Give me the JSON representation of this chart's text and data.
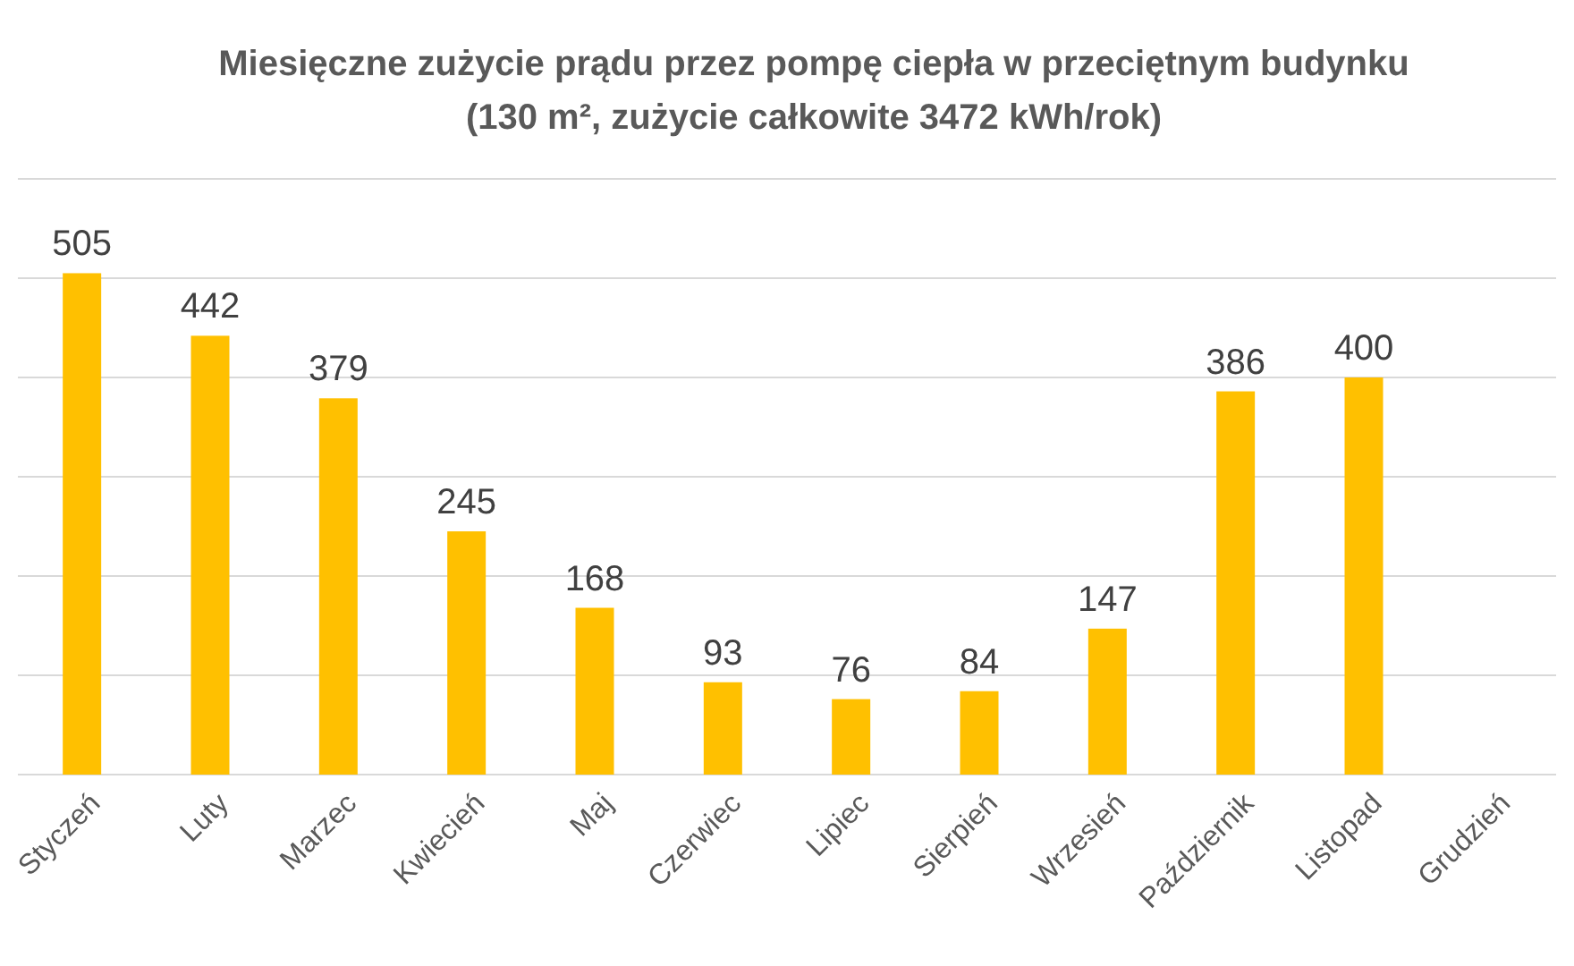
{
  "chart_data": {
    "type": "bar",
    "title": "Miesięczne zużycie prądu przez pompę ciepła w przeciętnym budynku",
    "subtitle": "(130 m², zużycie całkowite 3472 kWh/rok)",
    "categories": [
      "Styczeń",
      "Luty",
      "Marzec",
      "Kwiecień",
      "Maj",
      "Czerwiec",
      "Lipiec",
      "Sierpień",
      "Wrzesień",
      "Październik",
      "Listopad",
      "Grudzień"
    ],
    "values": [
      505,
      442,
      379,
      245,
      168,
      93,
      76,
      84,
      147,
      386,
      400,
      null
    ],
    "color": "#ffc000",
    "data_labels": true,
    "grid": "y",
    "tick_labels": "x",
    "ylim": [
      0,
      600
    ],
    "yticks": [
      {
        "value": 0,
        "label": null
      },
      {
        "value": 100,
        "label": null
      },
      {
        "value": 200,
        "label": null
      },
      {
        "value": 300,
        "label": null
      },
      {
        "value": 400,
        "label": null
      },
      {
        "value": 500,
        "label": null
      },
      {
        "value": 600,
        "label": null
      }
    ]
  }
}
